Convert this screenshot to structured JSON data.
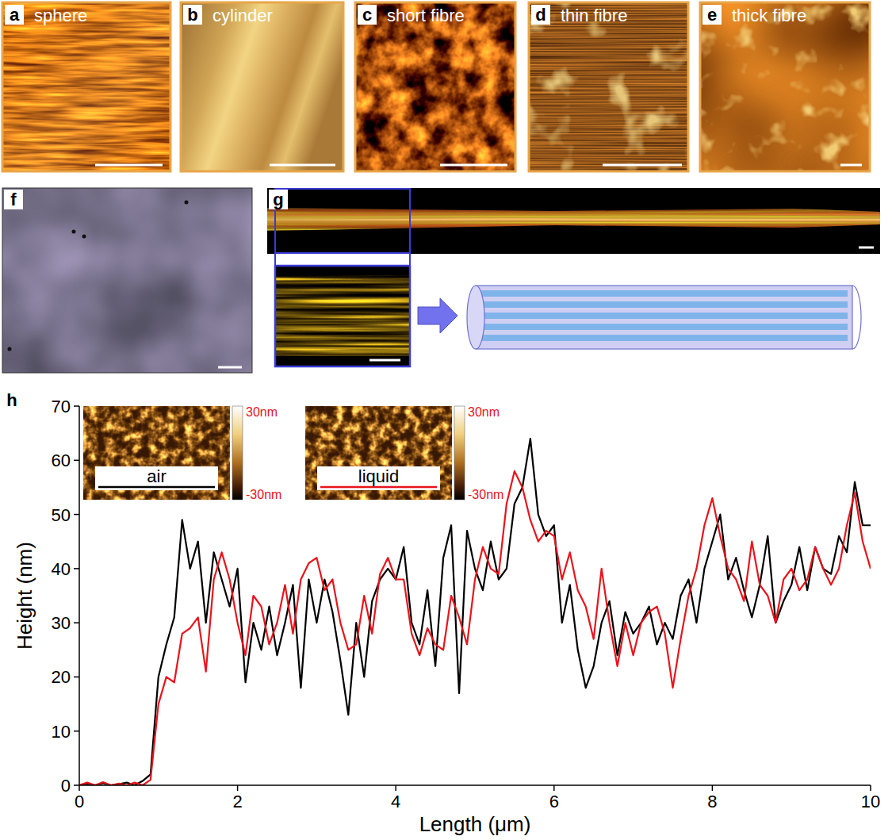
{
  "panels": [
    {
      "letter": "a",
      "label": "sphere"
    },
    {
      "letter": "b",
      "label": "cylinder"
    },
    {
      "letter": "c",
      "label": "short fibre"
    },
    {
      "letter": "d",
      "label": "thin fibre"
    },
    {
      "letter": "e",
      "label": "thick fibre"
    },
    {
      "letter": "f"
    },
    {
      "letter": "g"
    },
    {
      "letter": "h"
    }
  ],
  "chart_data": {
    "type": "line",
    "x_label": "Length (μm)",
    "y_label": "Height (nm)",
    "x": [
      0,
      0.1,
      0.2,
      0.3,
      0.4,
      0.5,
      0.6,
      0.7,
      0.8,
      0.9,
      1,
      1.1,
      1.2,
      1.3,
      1.4,
      1.5,
      1.6,
      1.7,
      1.8,
      1.9,
      2,
      2.1,
      2.2,
      2.3,
      2.4,
      2.5,
      2.6,
      2.7,
      2.8,
      2.9,
      3,
      3.1,
      3.2,
      3.3,
      3.4,
      3.5,
      3.6,
      3.7,
      3.8,
      3.9,
      4,
      4.1,
      4.2,
      4.3,
      4.4,
      4.5,
      4.6,
      4.7,
      4.8,
      4.9,
      5,
      5.1,
      5.2,
      5.3,
      5.4,
      5.5,
      5.6,
      5.7,
      5.8,
      5.9,
      6,
      6.1,
      6.2,
      6.3,
      6.4,
      6.5,
      6.6,
      6.7,
      6.8,
      6.9,
      7,
      7.1,
      7.2,
      7.3,
      7.4,
      7.5,
      7.6,
      7.7,
      7.8,
      7.9,
      8,
      8.1,
      8.2,
      8.3,
      8.4,
      8.5,
      8.6,
      8.7,
      8.8,
      8.9,
      9,
      9.1,
      9.2,
      9.3,
      9.4,
      9.5,
      9.6,
      9.7,
      9.8,
      9.9,
      10
    ],
    "series": [
      {
        "name": "air",
        "color": "#000000",
        "values": [
          0,
          0.3,
          0,
          0.4,
          0,
          0.2,
          0.5,
          0,
          0.8,
          2,
          20,
          26,
          31,
          49,
          40,
          45,
          30,
          43,
          38,
          33,
          40,
          19,
          30,
          25,
          33,
          24,
          30,
          37,
          18,
          38,
          30,
          38,
          32,
          23,
          13,
          30,
          20,
          34,
          38,
          40,
          38,
          44,
          30,
          26,
          36,
          22,
          42,
          48,
          17,
          47,
          40,
          36,
          45,
          38,
          40,
          52,
          55,
          64,
          50,
          46,
          48,
          30,
          37,
          25,
          18,
          22,
          30,
          34,
          24,
          32,
          28,
          30,
          33,
          26,
          30,
          27,
          35,
          38,
          30,
          40,
          45,
          50,
          38,
          42,
          36,
          31,
          37,
          46,
          30,
          34,
          37,
          44,
          36,
          44,
          40,
          39,
          46,
          43,
          56,
          48,
          48
        ]
      },
      {
        "name": "liquid",
        "color": "#e8141c",
        "values": [
          0,
          0.5,
          0,
          0.6,
          0,
          0.3,
          0,
          0.5,
          0,
          1,
          15,
          20,
          19,
          28,
          29,
          31,
          21,
          38,
          43,
          38,
          30,
          24,
          35,
          33,
          26,
          30,
          37,
          28,
          38,
          41,
          42,
          36,
          38,
          30,
          25,
          26,
          35,
          28,
          39,
          42,
          38,
          38,
          28,
          24,
          29,
          26,
          25,
          35,
          31,
          26,
          38,
          44,
          40,
          39,
          52,
          58,
          55,
          49,
          45,
          47,
          46,
          38,
          43,
          36,
          33,
          27,
          40,
          30,
          22,
          30,
          24,
          30,
          32,
          33,
          28,
          18,
          27,
          35,
          40,
          48,
          53,
          46,
          40,
          38,
          34,
          45,
          37,
          35,
          30,
          38,
          40,
          36,
          38,
          44,
          40,
          37,
          40,
          48,
          54,
          45,
          40
        ]
      }
    ],
    "xlim": [
      0,
      10
    ],
    "ylim": [
      0,
      70
    ],
    "xticks": [
      0,
      2,
      4,
      6,
      8,
      10
    ],
    "yticks": [
      0,
      10,
      20,
      30,
      40,
      50,
      60,
      70
    ],
    "grid": false,
    "legend": "top-left",
    "colorbar_range": [
      -30,
      30
    ],
    "colorbar_ticks": [
      {
        "value": 30,
        "label": "30nm"
      },
      {
        "value": -30,
        "label": "-30nm"
      }
    ]
  }
}
